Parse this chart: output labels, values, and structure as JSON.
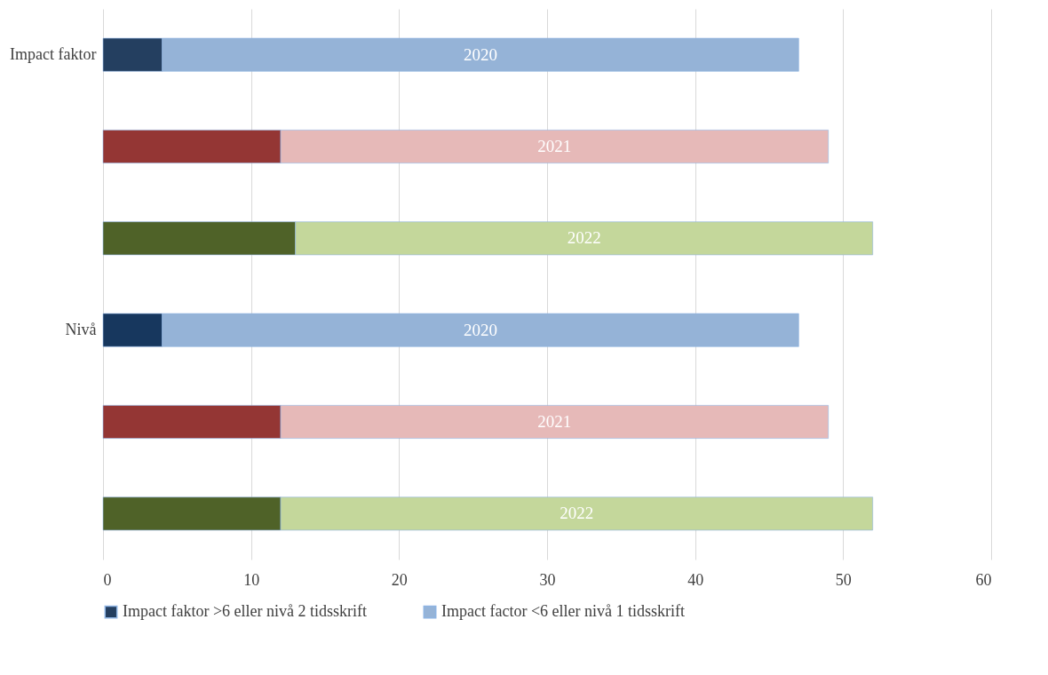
{
  "chart_data": {
    "type": "bar",
    "orientation": "horizontal",
    "stacked": true,
    "categories": [
      "Impact faktor",
      null,
      null,
      "Nivå",
      null,
      null
    ],
    "series": [
      {
        "name": "Impact faktor >6 eller nivå 2 tidsskrift",
        "color": "#243f60",
        "colors": [
          "#243f60",
          "#943634",
          "#4f6228",
          "#17375e",
          "#943634",
          "#4f6228"
        ],
        "values": [
          4,
          12,
          13,
          4,
          12,
          12
        ]
      },
      {
        "name": "Impact factor <6 eller nivå 1 tidsskrift",
        "color": "#95b3d7",
        "colors": [
          "#95b3d7",
          "#e6b9b8",
          "#c4d79b",
          "#95b3d7",
          "#e6b9b8",
          "#c4d79b"
        ],
        "values": [
          43,
          37,
          39,
          43,
          37,
          40
        ]
      }
    ],
    "annotations": [
      "2020",
      "2021",
      "2022",
      "2020",
      "2021",
      "2022"
    ],
    "xlim": [
      0,
      60
    ],
    "xticks": [
      0,
      10,
      20,
      30,
      40,
      50,
      60
    ],
    "grid": "x",
    "legend": "bottom"
  }
}
